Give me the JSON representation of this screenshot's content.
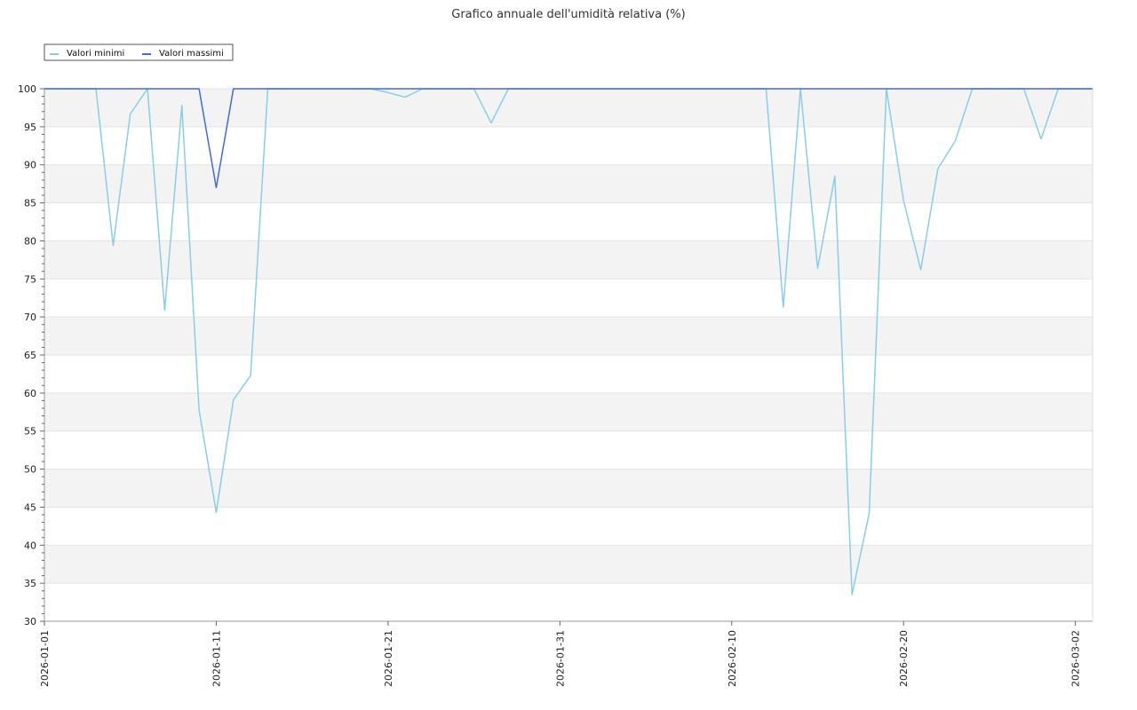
{
  "chart_data": {
    "type": "line",
    "title": "Grafico annuale dell'umidità relativa (%)",
    "xlabel": "",
    "ylabel": "",
    "x_type": "date",
    "xlim": [
      "2026-01-01",
      "2026-03-03"
    ],
    "ylim": [
      30,
      100
    ],
    "y_major_step": 5,
    "y_minor_step": 1,
    "x_ticks": [
      "2026-01-01",
      "2026-01-11",
      "2026-01-21",
      "2026-01-31",
      "2026-02-10",
      "2026-02-20",
      "2026-03-02"
    ],
    "legend_position": "top-left",
    "grid": true,
    "background_bands": [
      "#f3f3f3",
      "#ffffff"
    ],
    "series": [
      {
        "name": "Valori minimi",
        "color": "#87ceeb",
        "points": [
          [
            "2026-01-01",
            100
          ],
          [
            "2026-01-02",
            100
          ],
          [
            "2026-01-03",
            100
          ],
          [
            "2026-01-04",
            100
          ],
          [
            "2026-01-05",
            79.4
          ],
          [
            "2026-01-06",
            96.7
          ],
          [
            "2026-01-07",
            100
          ],
          [
            "2026-01-08",
            70.9
          ],
          [
            "2026-01-09",
            97.8
          ],
          [
            "2026-01-10",
            57.8
          ],
          [
            "2026-01-11",
            44.3
          ],
          [
            "2026-01-12",
            59.1
          ],
          [
            "2026-01-13",
            62.3
          ],
          [
            "2026-01-14",
            100
          ],
          [
            "2026-01-15",
            100
          ],
          [
            "2026-01-16",
            100
          ],
          [
            "2026-01-17",
            100
          ],
          [
            "2026-01-18",
            100
          ],
          [
            "2026-01-19",
            100
          ],
          [
            "2026-01-20",
            100
          ],
          [
            "2026-01-21",
            99.5
          ],
          [
            "2026-01-22",
            98.9
          ],
          [
            "2026-01-23",
            100
          ],
          [
            "2026-01-24",
            100
          ],
          [
            "2026-01-25",
            100
          ],
          [
            "2026-01-26",
            100
          ],
          [
            "2026-01-27",
            95.5
          ],
          [
            "2026-01-28",
            100
          ],
          [
            "2026-01-29",
            100
          ],
          [
            "2026-01-30",
            100
          ],
          [
            "2026-01-31",
            100
          ],
          [
            "2026-02-01",
            100
          ],
          [
            "2026-02-02",
            100
          ],
          [
            "2026-02-03",
            100
          ],
          [
            "2026-02-04",
            100
          ],
          [
            "2026-02-05",
            100
          ],
          [
            "2026-02-06",
            100
          ],
          [
            "2026-02-07",
            100
          ],
          [
            "2026-02-08",
            100
          ],
          [
            "2026-02-09",
            100
          ],
          [
            "2026-02-10",
            100
          ],
          [
            "2026-02-11",
            100
          ],
          [
            "2026-02-12",
            100
          ],
          [
            "2026-02-13",
            71.3
          ],
          [
            "2026-02-14",
            100
          ],
          [
            "2026-02-15",
            76.4
          ],
          [
            "2026-02-16",
            88.5
          ],
          [
            "2026-02-17",
            33.5
          ],
          [
            "2026-02-18",
            44.2
          ],
          [
            "2026-02-19",
            100
          ],
          [
            "2026-02-20",
            85.3
          ],
          [
            "2026-02-21",
            76.2
          ],
          [
            "2026-02-22",
            89.5
          ],
          [
            "2026-02-23",
            93.1
          ],
          [
            "2026-02-24",
            100
          ],
          [
            "2026-02-25",
            100
          ],
          [
            "2026-02-26",
            100
          ],
          [
            "2026-02-27",
            100
          ],
          [
            "2026-02-28",
            93.4
          ],
          [
            "2026-03-01",
            100
          ],
          [
            "2026-03-02",
            100
          ],
          [
            "2026-03-03",
            100
          ]
        ]
      },
      {
        "name": "Valori massimi",
        "color": "#4169e1",
        "points": [
          [
            "2026-01-01",
            100
          ],
          [
            "2026-01-02",
            100
          ],
          [
            "2026-01-03",
            100
          ],
          [
            "2026-01-04",
            100
          ],
          [
            "2026-01-05",
            100
          ],
          [
            "2026-01-06",
            100
          ],
          [
            "2026-01-07",
            100
          ],
          [
            "2026-01-08",
            100
          ],
          [
            "2026-01-09",
            100
          ],
          [
            "2026-01-10",
            100
          ],
          [
            "2026-01-11",
            87
          ],
          [
            "2026-01-12",
            100
          ],
          [
            "2026-01-13",
            100
          ],
          [
            "2026-01-14",
            100
          ],
          [
            "2026-01-15",
            100
          ],
          [
            "2026-01-16",
            100
          ],
          [
            "2026-01-17",
            100
          ],
          [
            "2026-01-18",
            100
          ],
          [
            "2026-01-19",
            100
          ],
          [
            "2026-01-20",
            100
          ],
          [
            "2026-01-21",
            100
          ],
          [
            "2026-01-22",
            100
          ],
          [
            "2026-01-23",
            100
          ],
          [
            "2026-01-24",
            100
          ],
          [
            "2026-01-25",
            100
          ],
          [
            "2026-01-26",
            100
          ],
          [
            "2026-01-27",
            100
          ],
          [
            "2026-01-28",
            100
          ],
          [
            "2026-01-29",
            100
          ],
          [
            "2026-01-30",
            100
          ],
          [
            "2026-01-31",
            100
          ],
          [
            "2026-02-01",
            100
          ],
          [
            "2026-02-02",
            100
          ],
          [
            "2026-02-03",
            100
          ],
          [
            "2026-02-04",
            100
          ],
          [
            "2026-02-05",
            100
          ],
          [
            "2026-02-06",
            100
          ],
          [
            "2026-02-07",
            100
          ],
          [
            "2026-02-08",
            100
          ],
          [
            "2026-02-09",
            100
          ],
          [
            "2026-02-10",
            100
          ],
          [
            "2026-02-11",
            100
          ],
          [
            "2026-02-12",
            100
          ],
          [
            "2026-02-13",
            100
          ],
          [
            "2026-02-14",
            100
          ],
          [
            "2026-02-15",
            100
          ],
          [
            "2026-02-16",
            100
          ],
          [
            "2026-02-17",
            100
          ],
          [
            "2026-02-18",
            100
          ],
          [
            "2026-02-19",
            100
          ],
          [
            "2026-02-20",
            100
          ],
          [
            "2026-02-21",
            100
          ],
          [
            "2026-02-22",
            100
          ],
          [
            "2026-02-23",
            100
          ],
          [
            "2026-02-24",
            100
          ],
          [
            "2026-02-25",
            100
          ],
          [
            "2026-02-26",
            100
          ],
          [
            "2026-02-27",
            100
          ],
          [
            "2026-02-28",
            100
          ],
          [
            "2026-03-01",
            100
          ],
          [
            "2026-03-02",
            100
          ],
          [
            "2026-03-03",
            100
          ]
        ]
      }
    ]
  }
}
